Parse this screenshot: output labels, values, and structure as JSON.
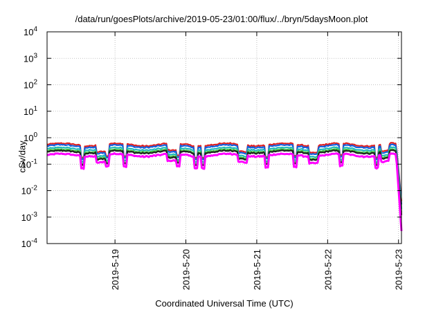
{
  "title": "/data/run/goesPlots/archive/2019-05-23/01:00/flux/../bryn/5daysMoon.plot",
  "chart_data": {
    "type": "line",
    "title": "/data/run/goesPlots/archive/2019-05-23/01:00/flux/../bryn/5daysMoon.plot",
    "xlabel": "Coordinated Universal Time (UTC)",
    "ylabel": "cSv/day",
    "yscale": "log",
    "ylim": [
      0.0001,
      10000
    ],
    "xlim": [
      "2019-05-18 01:00",
      "2019-05-23 01:00"
    ],
    "grid": true,
    "y_ticks": [
      {
        "value": 0.0001,
        "mant": "10",
        "exp": "-4"
      },
      {
        "value": 0.001,
        "mant": "10",
        "exp": "-3"
      },
      {
        "value": 0.01,
        "mant": "10",
        "exp": "-2"
      },
      {
        "value": 0.1,
        "mant": "10",
        "exp": "-1"
      },
      {
        "value": 1,
        "mant": "10",
        "exp": "0"
      },
      {
        "value": 10,
        "mant": "10",
        "exp": "1"
      },
      {
        "value": 100,
        "mant": "10",
        "exp": "2"
      },
      {
        "value": 1000,
        "mant": "10",
        "exp": "3"
      },
      {
        "value": 10000,
        "mant": "10",
        "exp": "4"
      }
    ],
    "x_ticks": [
      {
        "value": "2019-05-19 00:00",
        "label": "2019-5-19"
      },
      {
        "value": "2019-05-20 00:00",
        "label": "2019-5-20"
      },
      {
        "value": "2019-05-21 00:00",
        "label": "2019-5-21"
      },
      {
        "value": "2019-05-22 00:00",
        "label": "2019-5-22"
      },
      {
        "value": "2019-05-23 00:00",
        "label": "2019-5-23"
      }
    ],
    "series": [
      {
        "color": "#e02020",
        "baseline": 0.55,
        "end_value": 0.004
      },
      {
        "color": "#1060e0",
        "baseline": 0.48,
        "end_value": 0.003
      },
      {
        "color": "#20b8b8",
        "baseline": 0.38,
        "end_value": 0.002
      },
      {
        "color": "#40c040",
        "baseline": 0.32,
        "end_value": 0.0015
      },
      {
        "color": "#202020",
        "baseline": 0.29,
        "end_value": 0.0012
      },
      {
        "color": "#ff00ff",
        "baseline": 0.22,
        "end_value": 0.0003
      }
    ]
  }
}
